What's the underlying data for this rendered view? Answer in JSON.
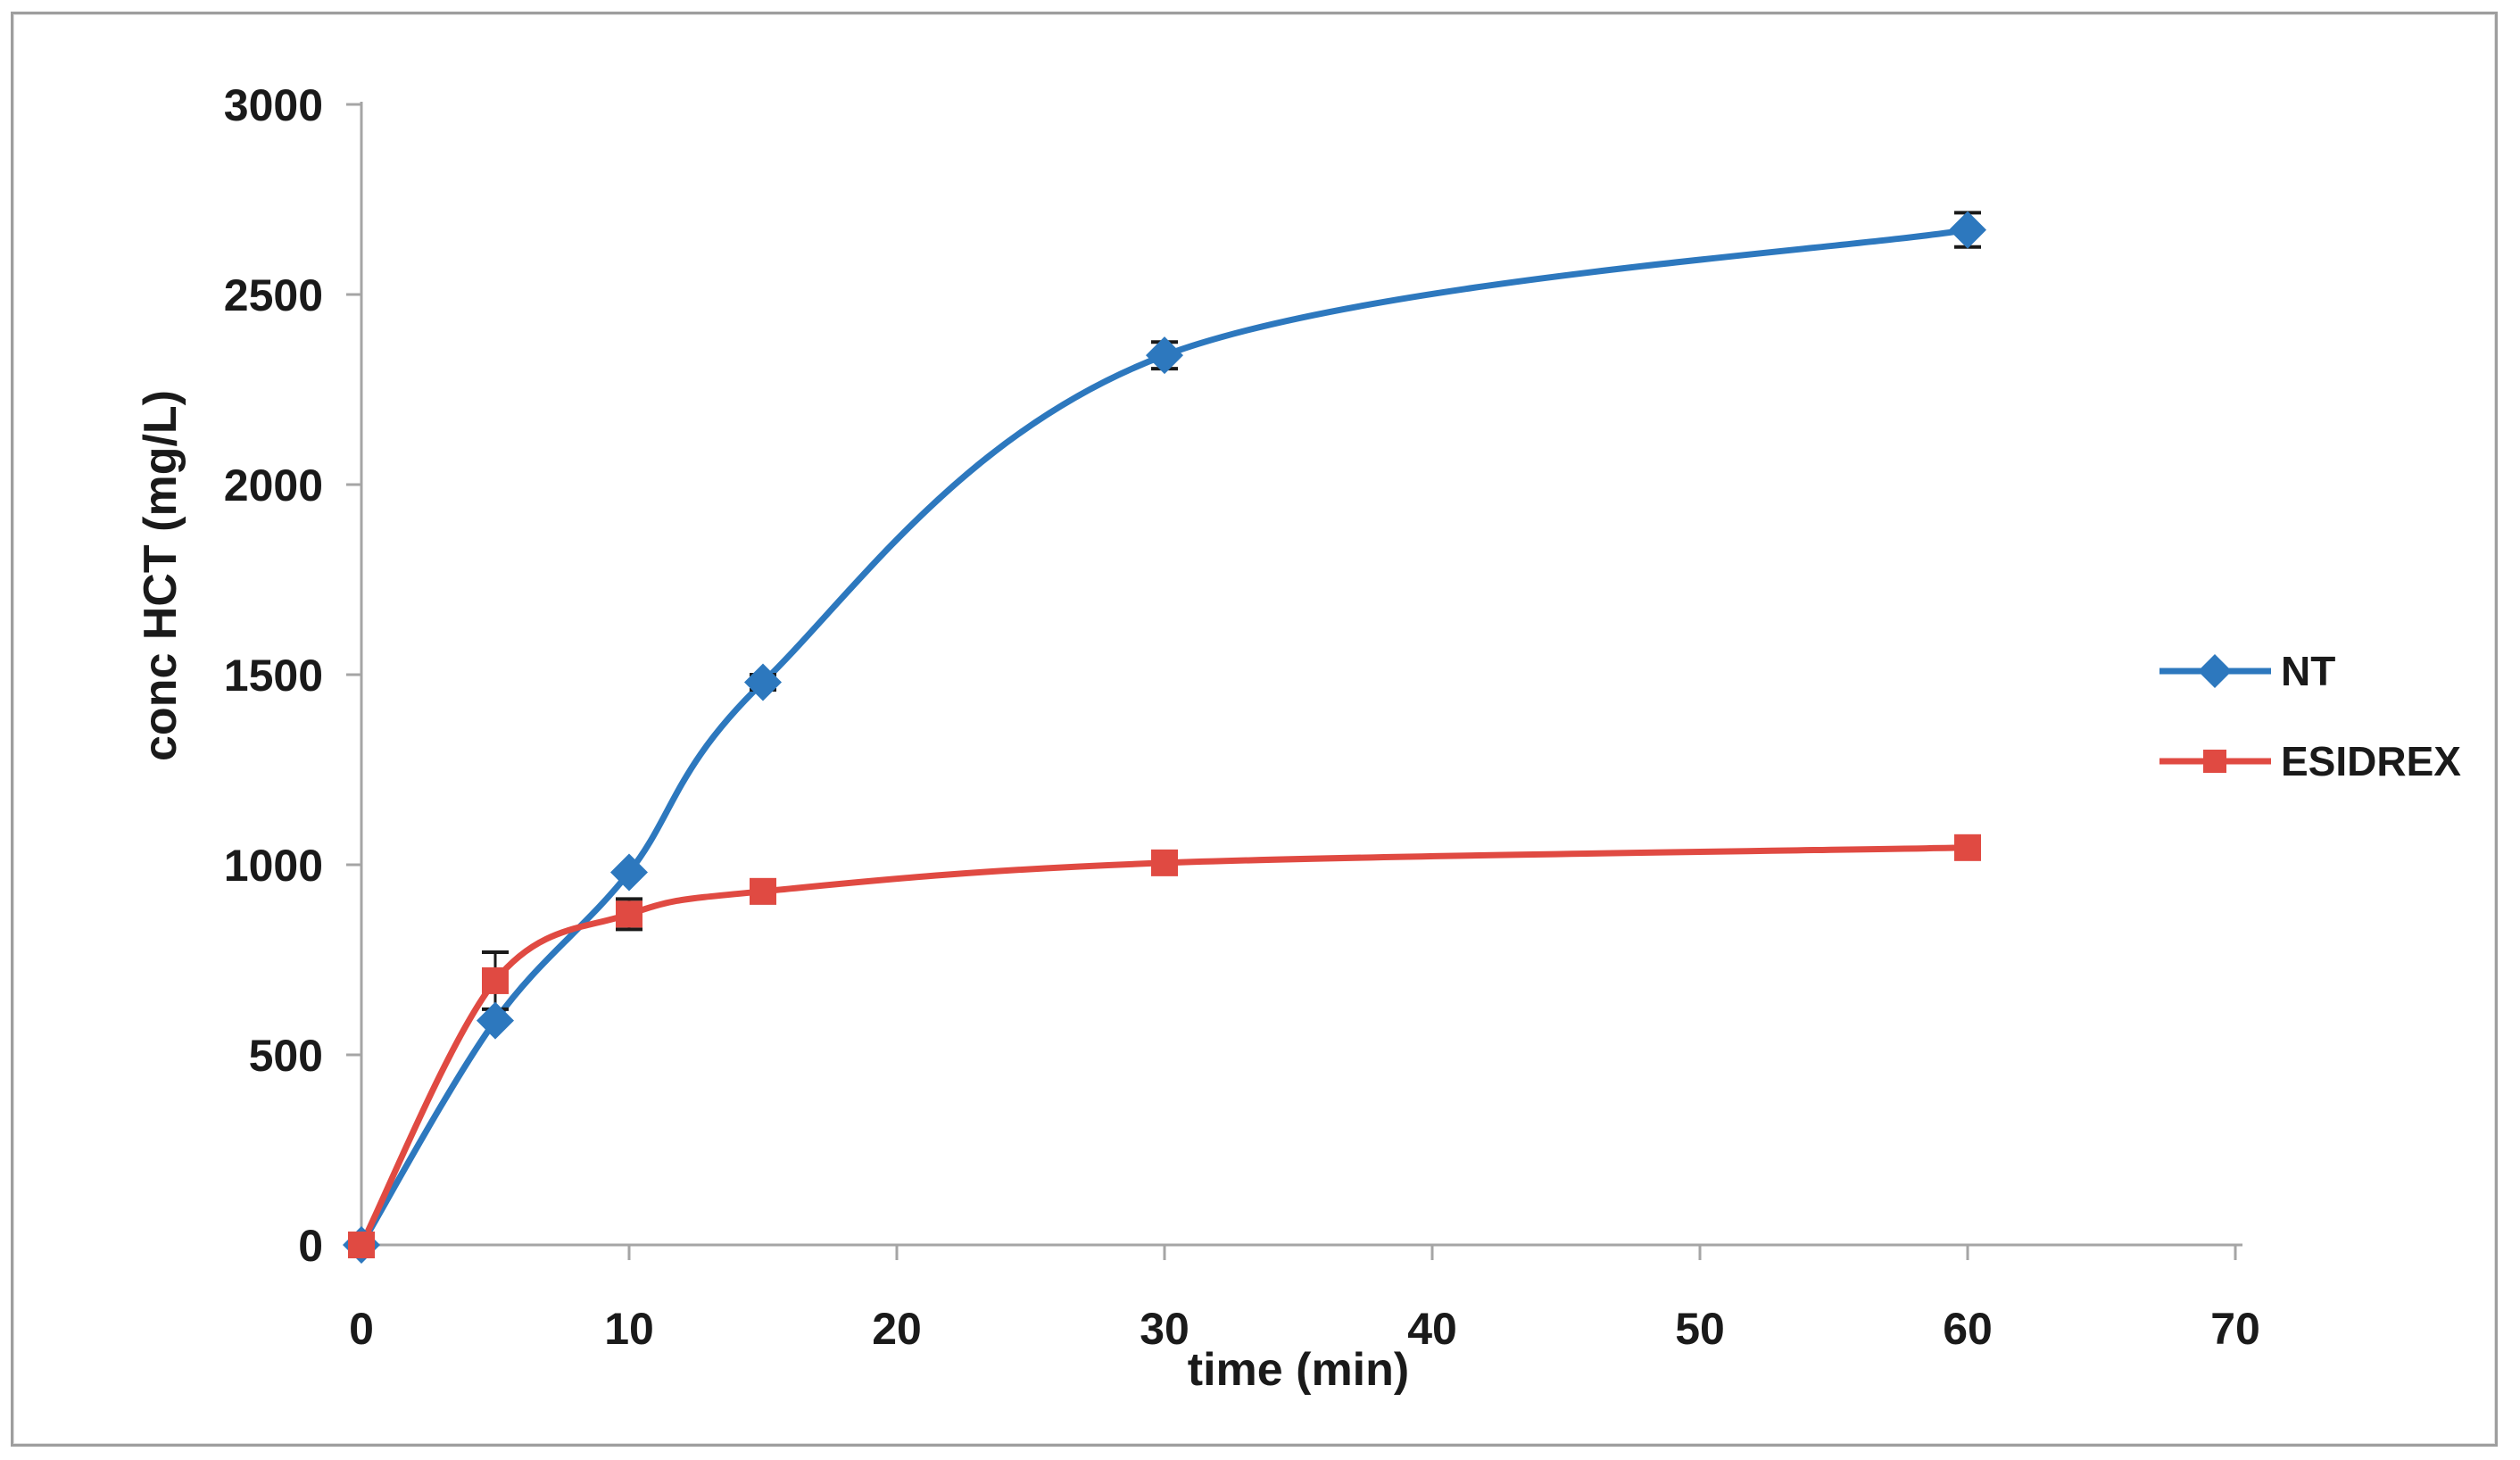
{
  "chart_data": {
    "type": "line",
    "title": "",
    "x": [
      0,
      5,
      10,
      15,
      30,
      60
    ],
    "series": [
      {
        "name": "NT",
        "color": "#2d78be",
        "marker": "diamond",
        "values": [
          0,
          590,
          980,
          1480,
          2340,
          2670
        ],
        "error_bars": [
          0,
          0,
          0,
          20,
          35,
          45
        ]
      },
      {
        "name": "ESIDREX",
        "color": "#e04a42",
        "marker": "square",
        "values": [
          0,
          695,
          870,
          930,
          1005,
          1045
        ],
        "error_bars": [
          0,
          75,
          40,
          30,
          20,
          25
        ]
      }
    ],
    "xlabel": "time (min)",
    "ylabel": "conc HCT (mg/L)",
    "xlim": [
      0,
      70
    ],
    "ylim": [
      0,
      3000
    ],
    "xticks": [
      0,
      10,
      20,
      30,
      40,
      50,
      60,
      70
    ],
    "yticks": [
      0,
      500,
      1000,
      1500,
      2000,
      2500,
      3000
    ],
    "grid": "off",
    "line_style": "smooth",
    "legend_position": "right-middle",
    "axis_color": "#a5a5a5",
    "text_color": "#1a1a1a",
    "error_bar_color": "#1a1a1a",
    "background_color": "#ffffff",
    "frame_border_color": "#9e9e9e"
  }
}
